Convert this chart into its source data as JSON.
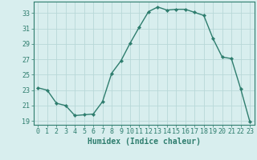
{
  "x": [
    0,
    1,
    2,
    3,
    4,
    5,
    6,
    7,
    8,
    9,
    10,
    11,
    12,
    13,
    14,
    15,
    16,
    17,
    18,
    19,
    20,
    21,
    22,
    23
  ],
  "y": [
    23.3,
    23.0,
    21.3,
    21.0,
    19.7,
    19.8,
    19.9,
    21.5,
    25.2,
    26.8,
    29.1,
    31.2,
    33.2,
    33.8,
    33.4,
    33.5,
    33.5,
    33.1,
    32.7,
    29.7,
    27.3,
    27.1,
    23.2,
    18.9
  ],
  "line_color": "#2e7d6e",
  "marker": "D",
  "marker_size": 2.2,
  "bg_color": "#d8eeee",
  "grid_color": "#b8d8d8",
  "xlabel": "Humidex (Indice chaleur)",
  "ylabel": "",
  "xlim": [
    -0.5,
    23.5
  ],
  "ylim": [
    18.5,
    34.5
  ],
  "yticks": [
    19,
    21,
    23,
    25,
    27,
    29,
    31,
    33
  ],
  "xticks": [
    0,
    1,
    2,
    3,
    4,
    5,
    6,
    7,
    8,
    9,
    10,
    11,
    12,
    13,
    14,
    15,
    16,
    17,
    18,
    19,
    20,
    21,
    22,
    23
  ],
  "axis_color": "#2e7d6e",
  "tick_color": "#2e7d6e",
  "label_color": "#2e7d6e",
  "xlabel_fontsize": 7.0,
  "tick_fontsize": 6.0
}
